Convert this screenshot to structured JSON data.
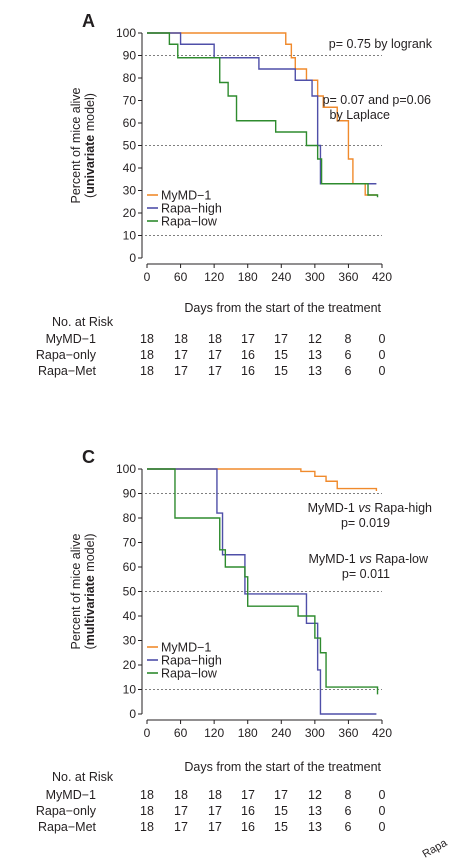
{
  "chart_data": [
    {
      "type": "line",
      "panel_label": "A",
      "xlabel": "Days from the start of the treatment",
      "ylabel_prefix": "Percent of mice alive",
      "ylabel_bold": "univariate",
      "ylabel_suffix": " model)",
      "ylabel_open": "(",
      "xlim": [
        0,
        420
      ],
      "ylim": [
        0,
        100
      ],
      "xticks": [
        0,
        60,
        120,
        180,
        240,
        300,
        360,
        420
      ],
      "yticks": [
        0,
        10,
        20,
        30,
        40,
        50,
        60,
        70,
        80,
        90,
        100
      ],
      "reference_lines": [
        10,
        50,
        90
      ],
      "legend_position": "bottom-left",
      "annotations": [
        {
          "lines": [
            "p= 0.75 by logrank"
          ]
        },
        {
          "lines": [
            "p= 0.07 and p=0.06",
            "by Laplace"
          ]
        }
      ],
      "series": [
        {
          "name": "MyMD−1",
          "color": "#f08a2c",
          "x": [
            0,
            120,
            248,
            258,
            265,
            285,
            305,
            315,
            340,
            360,
            368,
            390,
            412
          ],
          "y": [
            100,
            100,
            95,
            89,
            84,
            79,
            72,
            67,
            61,
            44,
            33,
            28,
            28
          ]
        },
        {
          "name": "Rapa−high",
          "color": "#4f4fa8",
          "x": [
            0,
            30,
            60,
            120,
            200,
            265,
            295,
            305,
            310,
            410
          ],
          "y": [
            100,
            100,
            95,
            89,
            84,
            79,
            72,
            50,
            33,
            33
          ]
        },
        {
          "name": "Rapa−low",
          "color": "#2e8b2e",
          "x": [
            0,
            30,
            40,
            55,
            120,
            130,
            145,
            160,
            210,
            230,
            275,
            285,
            305,
            312,
            395,
            412
          ],
          "y": [
            100,
            100,
            95,
            89,
            89,
            78,
            72,
            61,
            61,
            56,
            56,
            50,
            44,
            33,
            28,
            27
          ]
        }
      ],
      "risk_table": {
        "header": "No. at Risk",
        "rows": [
          {
            "label": "MyMD−1",
            "values": [
              "18",
              "18",
              "18",
              "17",
              "17",
              "12",
              "8",
              "0"
            ]
          },
          {
            "label": "Rapa−only",
            "values": [
              "18",
              "17",
              "17",
              "16",
              "15",
              "13",
              "6",
              "0"
            ]
          },
          {
            "label": "Rapa−Met",
            "values": [
              "18",
              "17",
              "17",
              "16",
              "15",
              "13",
              "6",
              "0"
            ]
          }
        ]
      }
    },
    {
      "type": "line",
      "panel_label": "C",
      "xlabel": "Days from the start of the treatment",
      "ylabel_prefix": "Percent of mice alive",
      "ylabel_bold": "multivariate",
      "ylabel_suffix": " model)",
      "ylabel_open": "(",
      "xlim": [
        0,
        420
      ],
      "ylim": [
        0,
        100
      ],
      "xticks": [
        0,
        60,
        120,
        180,
        240,
        300,
        360,
        420
      ],
      "yticks": [
        0,
        10,
        20,
        30,
        40,
        50,
        60,
        70,
        80,
        90,
        100
      ],
      "reference_lines": [
        10,
        50,
        90
      ],
      "legend_position": "bottom-left",
      "annotations": [
        {
          "lines": [
            "MyMD-1 vs Rapa-high",
            "p= 0.019"
          ],
          "italic_word": "vs"
        },
        {
          "lines": [
            "MyMD-1 vs Rapa-low",
            "p= 0.011"
          ],
          "italic_word": "vs"
        }
      ],
      "series": [
        {
          "name": "MyMD−1",
          "color": "#f08a2c",
          "x": [
            0,
            250,
            275,
            300,
            320,
            340,
            410
          ],
          "y": [
            100,
            100,
            99,
            97,
            95,
            92,
            91
          ]
        },
        {
          "name": "Rapa−high",
          "color": "#4f4fa8",
          "x": [
            0,
            55,
            125,
            135,
            175,
            265,
            285,
            305,
            310,
            410
          ],
          "y": [
            100,
            100,
            82,
            65,
            49,
            49,
            37,
            18,
            0,
            0
          ]
        },
        {
          "name": "Rapa−low",
          "color": "#2e8b2e",
          "x": [
            0,
            30,
            50,
            120,
            130,
            140,
            175,
            180,
            260,
            270,
            300,
            310,
            320,
            400,
            412
          ],
          "y": [
            100,
            100,
            80,
            80,
            67,
            60,
            56,
            44,
            44,
            40,
            31,
            25,
            11,
            11,
            8
          ]
        }
      ],
      "risk_table": {
        "header": "No. at Risk",
        "rows": [
          {
            "label": "MyMD−1",
            "values": [
              "18",
              "18",
              "18",
              "17",
              "17",
              "12",
              "8",
              "0"
            ]
          },
          {
            "label": "Rapa−only",
            "values": [
              "18",
              "17",
              "17",
              "16",
              "15",
              "13",
              "6",
              "0"
            ]
          },
          {
            "label": "Rapa−Met",
            "values": [
              "18",
              "17",
              "17",
              "16",
              "15",
              "13",
              "6",
              "0"
            ]
          }
        ]
      }
    }
  ],
  "corner_fragment": "Rapa"
}
